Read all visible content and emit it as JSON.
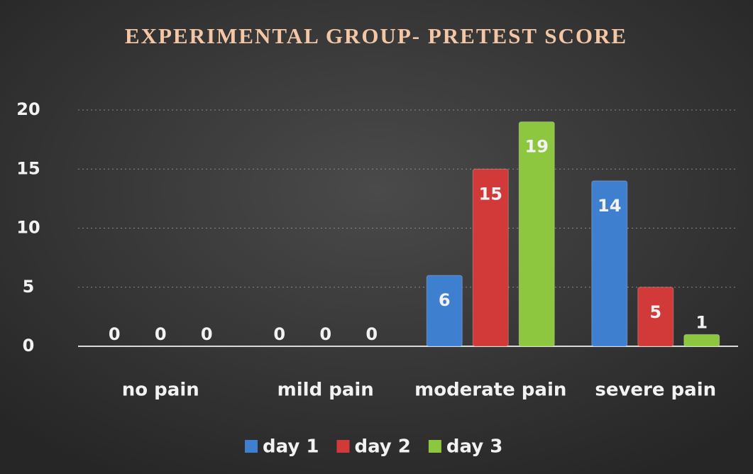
{
  "chart_data": {
    "type": "bar",
    "title": "EXPERIMENTAL GROUP- PRETEST SCORE",
    "categories": [
      "no pain",
      "mild pain",
      "moderate pain",
      "severe pain"
    ],
    "series": [
      {
        "name": "day 1",
        "color": "#3f7fd0",
        "values": [
          0,
          0,
          6,
          14
        ]
      },
      {
        "name": "day 2",
        "color": "#d23a3a",
        "values": [
          0,
          0,
          15,
          5
        ]
      },
      {
        "name": "day 3",
        "color": "#8dc63f",
        "values": [
          0,
          0,
          19,
          1
        ]
      }
    ],
    "ylim": [
      0,
      20
    ],
    "yticks": [
      0,
      5,
      10,
      15,
      20
    ],
    "grid": true,
    "legend": "bottom"
  }
}
